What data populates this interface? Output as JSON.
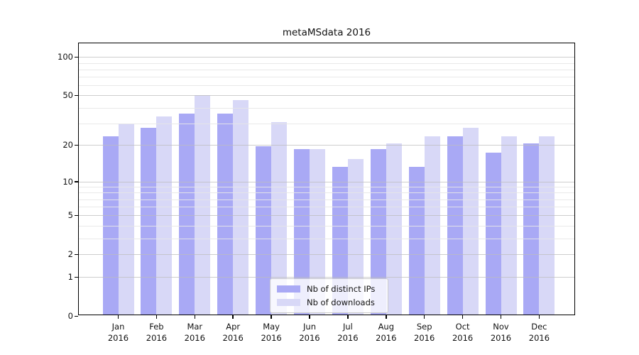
{
  "title": "metaMSdata 2016",
  "chart_data": {
    "type": "bar",
    "title": "metaMSdata 2016",
    "categories": [
      "Jan",
      "Feb",
      "Mar",
      "Apr",
      "May",
      "Jun",
      "Jul",
      "Aug",
      "Sep",
      "Oct",
      "Nov",
      "Dec"
    ],
    "category_year": "2016",
    "series": [
      {
        "name": "Nb of distinct IPs",
        "color": "#a9a9f5",
        "values": [
          23,
          27,
          35,
          35,
          19,
          18,
          13,
          18,
          13,
          23,
          17,
          20
        ]
      },
      {
        "name": "Nb of downloads",
        "color": "#d8d8f7",
        "values": [
          29,
          33,
          49,
          45,
          30,
          18,
          15,
          20,
          23,
          27,
          23,
          23
        ]
      }
    ],
    "xlabel": "",
    "ylabel": "",
    "yscale": "log1p",
    "ylim": [
      0,
      128
    ],
    "y_ticks": [
      0,
      1,
      2,
      5,
      10,
      20,
      50,
      100
    ],
    "y_minor_ticks": [
      3,
      4,
      6,
      7,
      8,
      9,
      30,
      40,
      60,
      70,
      80,
      90
    ],
    "grid": "both",
    "legend_position": "lower center"
  }
}
